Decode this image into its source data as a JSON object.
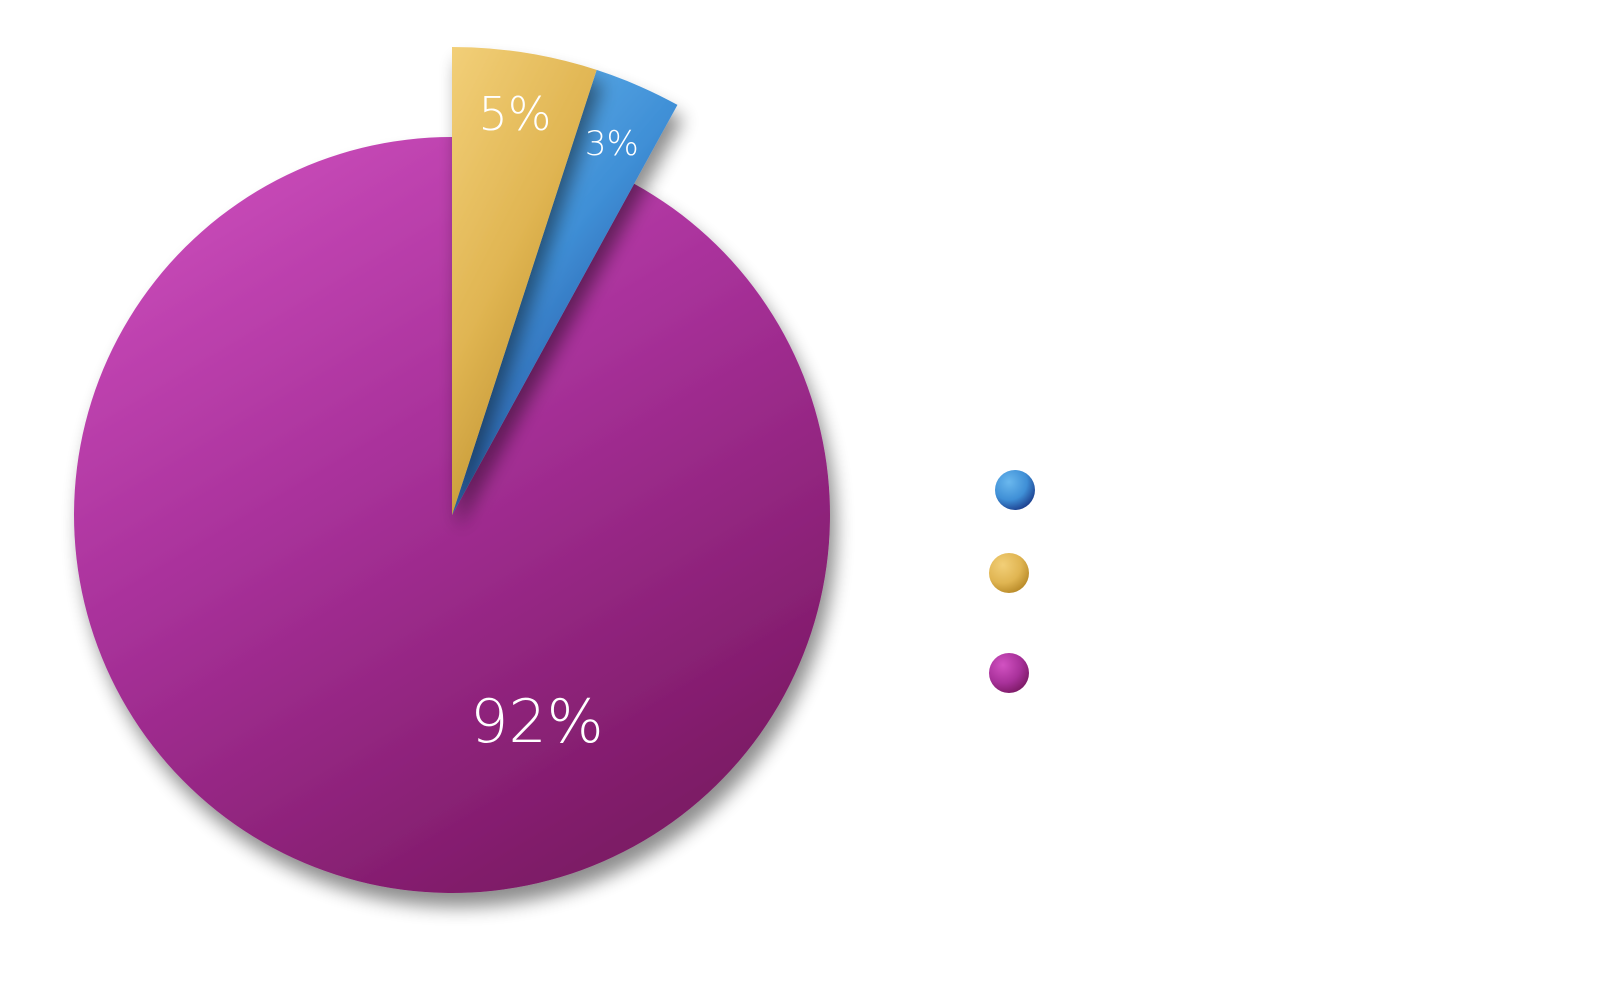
{
  "chart_data": {
    "type": "pie",
    "title": "",
    "start_angle_deg": 0,
    "direction": "counterclockwise",
    "slices": [
      {
        "key": "magenta",
        "value": 92,
        "label": "92%",
        "color": "#a8319a",
        "color_light": "#d252c2",
        "color_dark": "#7d1a66",
        "exploded": false
      },
      {
        "key": "blue",
        "value": 3,
        "label": "3%",
        "color": "#3f8fd6",
        "color_light": "#6ab8ee",
        "color_dark": "#1c3f8e",
        "exploded": true
      },
      {
        "key": "gold",
        "value": 5,
        "label": "5%",
        "color": "#e0b552",
        "color_light": "#f2cf78",
        "color_dark": "#b88a28",
        "exploded": true
      }
    ],
    "legend": {
      "position": "right",
      "entries": [
        {
          "key": "blue",
          "name": "",
          "color": "#3f8fd6"
        },
        {
          "key": "gold",
          "name": "",
          "color": "#e0b552"
        },
        {
          "key": "magenta",
          "name": "",
          "color": "#a8319a"
        }
      ]
    }
  }
}
